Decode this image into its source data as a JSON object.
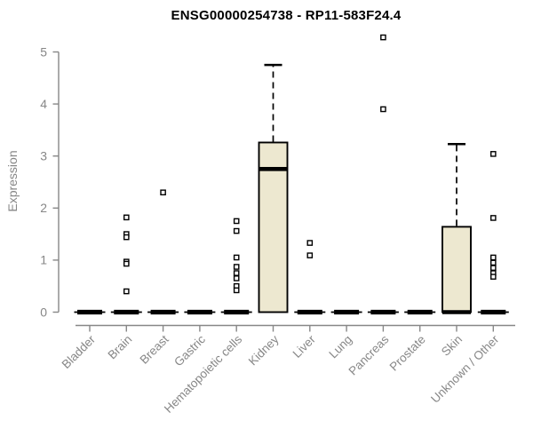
{
  "chart_data": {
    "type": "boxplot",
    "title": "ENSG00000254738 - RP11-583F24.4",
    "xlabel": "",
    "ylabel": "Expression",
    "ylim": [
      0,
      5
    ],
    "yticks": [
      0,
      1,
      2,
      3,
      4,
      5
    ],
    "grid": false,
    "legend": "none",
    "categories": [
      "Bladder",
      "Brain",
      "Breast",
      "Gastric",
      "Hematopoietic cells",
      "Kidney",
      "Liver",
      "Lung",
      "Pancreas",
      "Prostate",
      "Skin",
      "Unknown / Other"
    ],
    "boxes": [
      {
        "category": "Bladder",
        "q1": 0,
        "median": 0,
        "q3": 0,
        "whisker_low": 0,
        "whisker_high": 0,
        "outliers": []
      },
      {
        "category": "Brain",
        "q1": 0,
        "median": 0,
        "q3": 0,
        "whisker_low": 0,
        "whisker_high": 0,
        "outliers": [
          1.82,
          1.5,
          1.44,
          0.97,
          0.93,
          0.4
        ]
      },
      {
        "category": "Breast",
        "q1": 0,
        "median": 0,
        "q3": 0,
        "whisker_low": 0,
        "whisker_high": 0,
        "outliers": [
          2.3
        ]
      },
      {
        "category": "Gastric",
        "q1": 0,
        "median": 0,
        "q3": 0,
        "whisker_low": 0,
        "whisker_high": 0,
        "outliers": []
      },
      {
        "category": "Hematopoietic cells",
        "q1": 0,
        "median": 0,
        "q3": 0,
        "whisker_low": 0,
        "whisker_high": 0,
        "outliers": [
          1.75,
          1.56,
          1.05,
          0.87,
          0.75,
          0.65,
          0.5,
          0.42
        ]
      },
      {
        "category": "Kidney",
        "q1": 0,
        "median": 2.75,
        "q3": 3.26,
        "whisker_low": 0,
        "whisker_high": 4.75,
        "outliers": []
      },
      {
        "category": "Liver",
        "q1": 0,
        "median": 0,
        "q3": 0,
        "whisker_low": 0,
        "whisker_high": 0,
        "outliers": [
          1.33,
          1.09
        ]
      },
      {
        "category": "Lung",
        "q1": 0,
        "median": 0,
        "q3": 0,
        "whisker_low": 0,
        "whisker_high": 0,
        "outliers": []
      },
      {
        "category": "Pancreas",
        "q1": 0,
        "median": 0,
        "q3": 0,
        "whisker_low": 0,
        "whisker_high": 0,
        "outliers": [
          5.28,
          3.9
        ]
      },
      {
        "category": "Prostate",
        "q1": 0,
        "median": 0,
        "q3": 0,
        "whisker_low": 0,
        "whisker_high": 0,
        "outliers": []
      },
      {
        "category": "Skin",
        "q1": 0,
        "median": 0,
        "q3": 1.64,
        "whisker_low": 0,
        "whisker_high": 3.23,
        "outliers": []
      },
      {
        "category": "Unknown / Other",
        "q1": 0,
        "median": 0,
        "q3": 0,
        "whisker_low": 0,
        "whisker_high": 0,
        "outliers": [
          3.04,
          1.81,
          1.05,
          0.95,
          0.85,
          0.75,
          0.68
        ]
      }
    ],
    "colors": {
      "box_fill": "#EDE8D0",
      "box_border": "#000000",
      "median": "#000000",
      "outlier_fill": "#FFFFFF",
      "axis": "#878787",
      "tick_label": "#878787",
      "title": "#000000",
      "background": "#FFFFFF"
    }
  }
}
